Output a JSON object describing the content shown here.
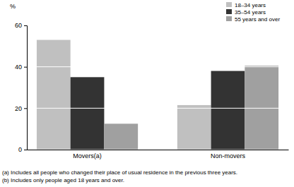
{
  "chart_data": {
    "type": "bar",
    "ylabel": "%",
    "categories": [
      "Movers(a)",
      "Non-movers"
    ],
    "series": [
      {
        "name": "18–34 years",
        "color": "#c0c0c0",
        "values": [
          53,
          21.5
        ]
      },
      {
        "name": "35–54 years",
        "color": "#333333",
        "values": [
          35,
          38
        ]
      },
      {
        "name": "55 years and over",
        "color": "#a0a0a0",
        "values": [
          12.5,
          40.5
        ]
      }
    ],
    "ylim": [
      0,
      60
    ],
    "yticks": [
      0,
      20,
      40,
      60
    ],
    "grid": true,
    "legend": "upper right",
    "notes": [
      "(a) Includes all people who changed their place of usual residence in the previous three years.",
      "(b) Includes only people aged 18 years and over."
    ]
  }
}
